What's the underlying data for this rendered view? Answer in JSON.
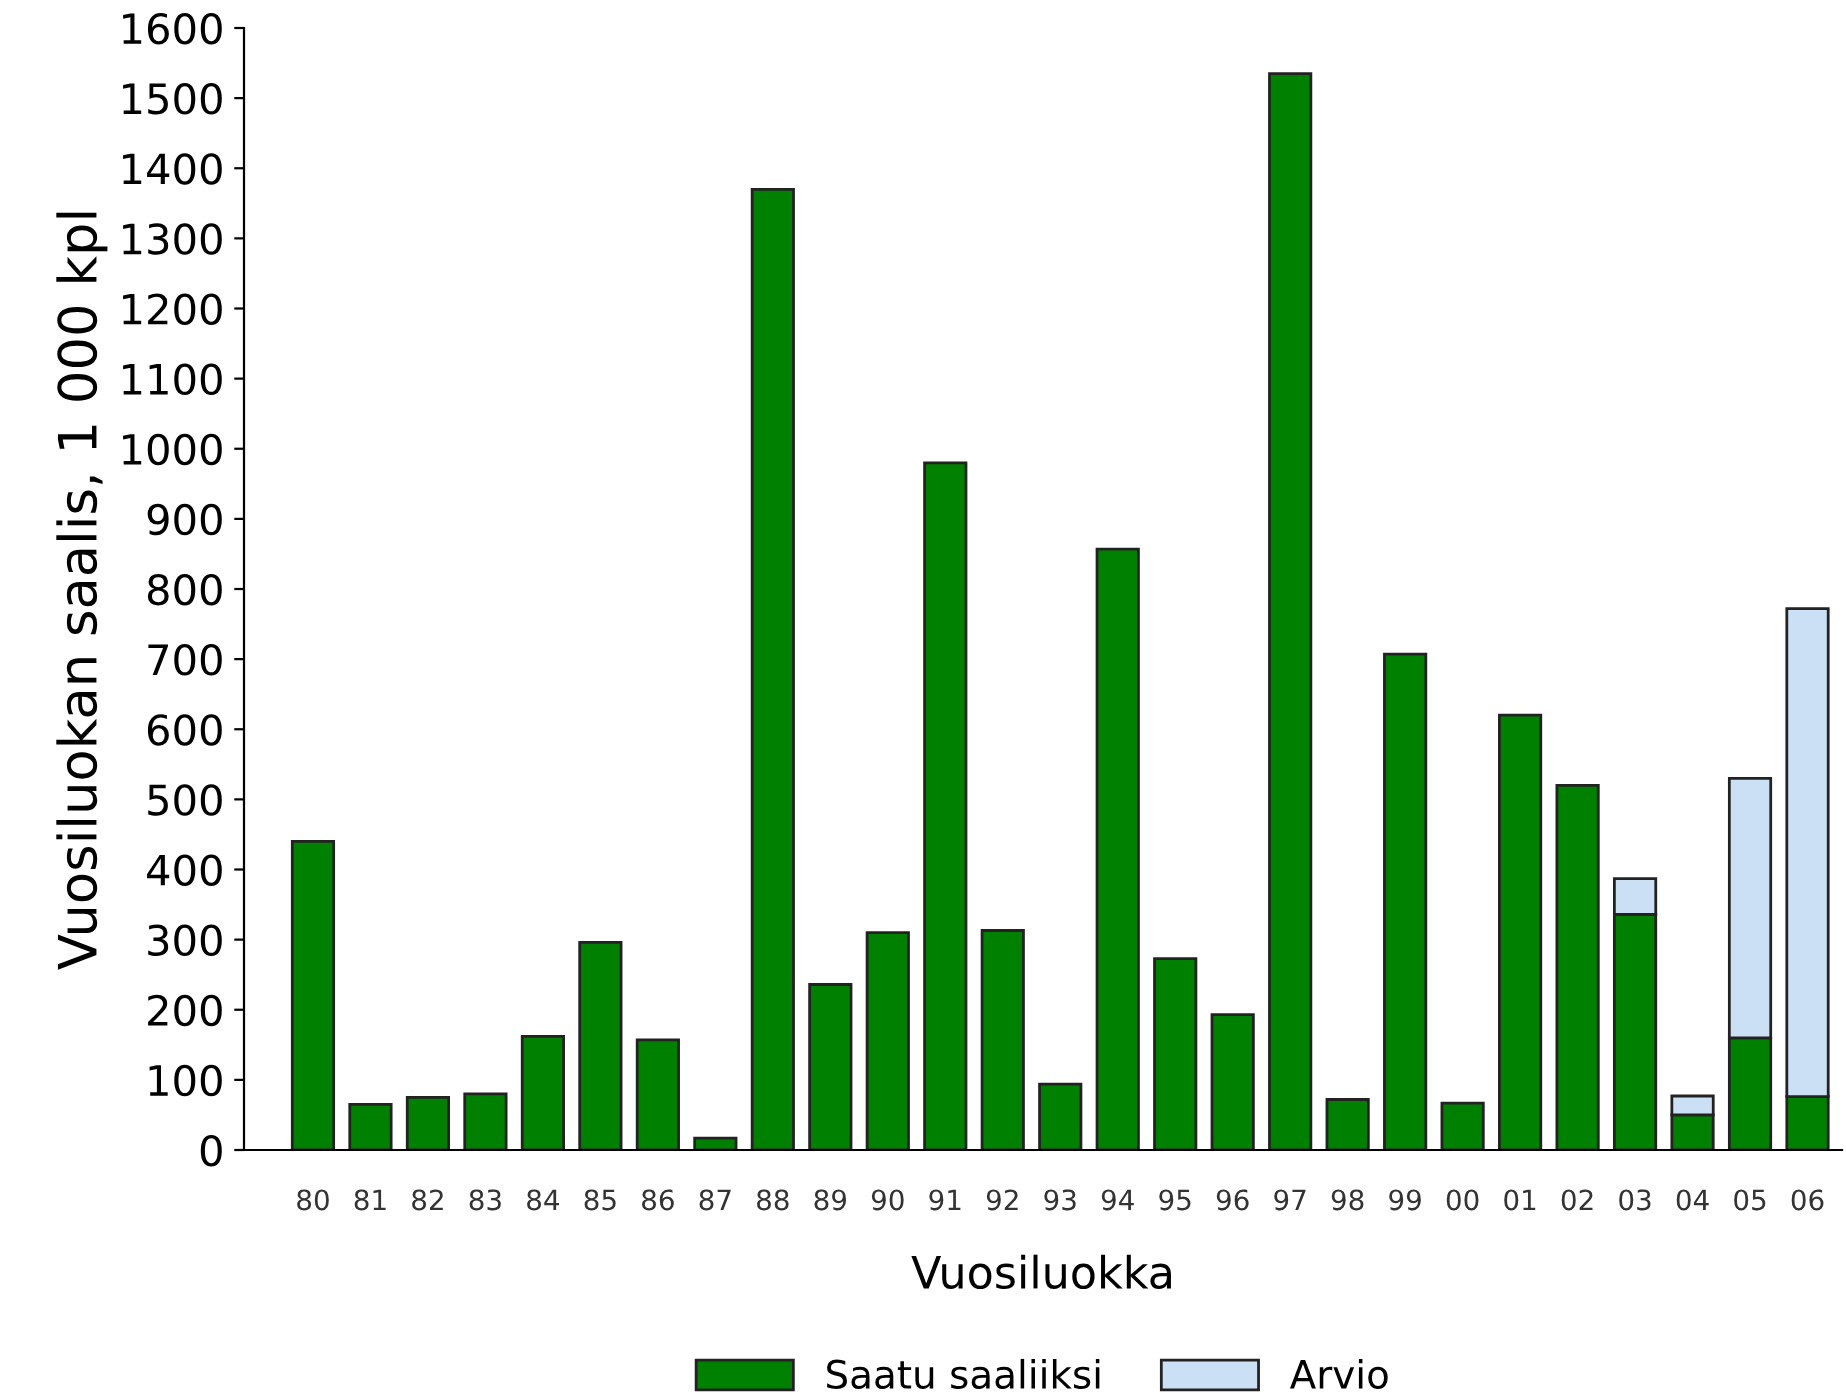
{
  "chart_data": {
    "type": "bar",
    "stacked": true,
    "xlabel": "Vuosiluokka",
    "ylabel": "Vuosiluokan saalis, 1 000 kpl",
    "categories": [
      "80",
      "81",
      "82",
      "83",
      "84",
      "85",
      "86",
      "87",
      "88",
      "89",
      "90",
      "91",
      "92",
      "93",
      "94",
      "95",
      "96",
      "97",
      "98",
      "99",
      "00",
      "01",
      "02",
      "03",
      "04",
      "05",
      "06"
    ],
    "series": [
      {
        "name": "Saatu saaliiksi",
        "color": "#008000",
        "values": [
          440,
          65,
          75,
          80,
          162,
          296,
          157,
          17,
          1370,
          236,
          310,
          980,
          313,
          94,
          857,
          273,
          193,
          1535,
          72,
          707,
          67,
          620,
          520,
          336,
          50,
          160,
          76
        ]
      },
      {
        "name": "Arvio",
        "color": "#cce0f5",
        "values": [
          null,
          null,
          null,
          null,
          null,
          null,
          null,
          null,
          null,
          null,
          null,
          null,
          null,
          null,
          null,
          null,
          null,
          null,
          null,
          null,
          null,
          null,
          null,
          51,
          27,
          370,
          696
        ]
      }
    ],
    "ylim": [
      0,
      1600
    ],
    "yticks": [
      0,
      100,
      200,
      300,
      400,
      500,
      600,
      700,
      800,
      900,
      1000,
      1100,
      1200,
      1300,
      1400,
      1500,
      1600
    ],
    "grid": false,
    "legend": "bottom"
  }
}
